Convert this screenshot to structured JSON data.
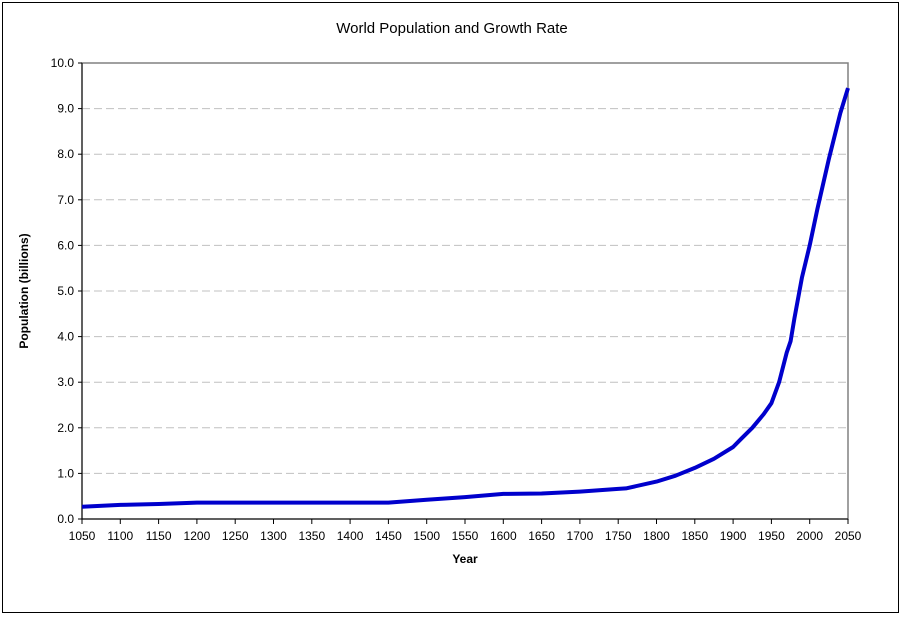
{
  "chart_data": {
    "type": "line",
    "title": "World Population and Growth Rate",
    "xlabel": "Year",
    "ylabel": "Population (billions)",
    "xlim": [
      1050,
      2050
    ],
    "ylim": [
      0,
      10
    ],
    "x_ticks": [
      "1050",
      "1100",
      "1150",
      "1200",
      "1250",
      "1300",
      "1350",
      "1400",
      "1450",
      "1500",
      "1550",
      "1600",
      "1650",
      "1700",
      "1750",
      "1800",
      "1850",
      "1900",
      "1950",
      "2000",
      "2050"
    ],
    "y_ticks": [
      "0.0",
      "1.0",
      "2.0",
      "3.0",
      "4.0",
      "5.0",
      "6.0",
      "7.0",
      "8.0",
      "9.0",
      "10.0"
    ],
    "grid": "horizontal dashed",
    "line_color": "#0000CC",
    "series": [
      {
        "x": [
          1050,
          1100,
          1150,
          1200,
          1250,
          1300,
          1350,
          1400,
          1450,
          1500,
          1550,
          1600,
          1650,
          1700,
          1750,
          1760,
          1800,
          1825,
          1850,
          1875,
          1900,
          1910,
          1925,
          1940,
          1950,
          1960,
          1970,
          1975,
          1980,
          1990,
          2000,
          2010,
          2025,
          2040,
          2050
        ],
        "y": [
          0.27,
          0.31,
          0.33,
          0.36,
          0.36,
          0.36,
          0.36,
          0.36,
          0.36,
          0.42,
          0.48,
          0.55,
          0.56,
          0.6,
          0.66,
          0.67,
          0.82,
          0.95,
          1.12,
          1.32,
          1.58,
          1.75,
          2.0,
          2.3,
          2.54,
          3.0,
          3.65,
          3.9,
          4.4,
          5.3,
          6.0,
          6.8,
          7.9,
          8.9,
          9.45
        ]
      }
    ]
  }
}
